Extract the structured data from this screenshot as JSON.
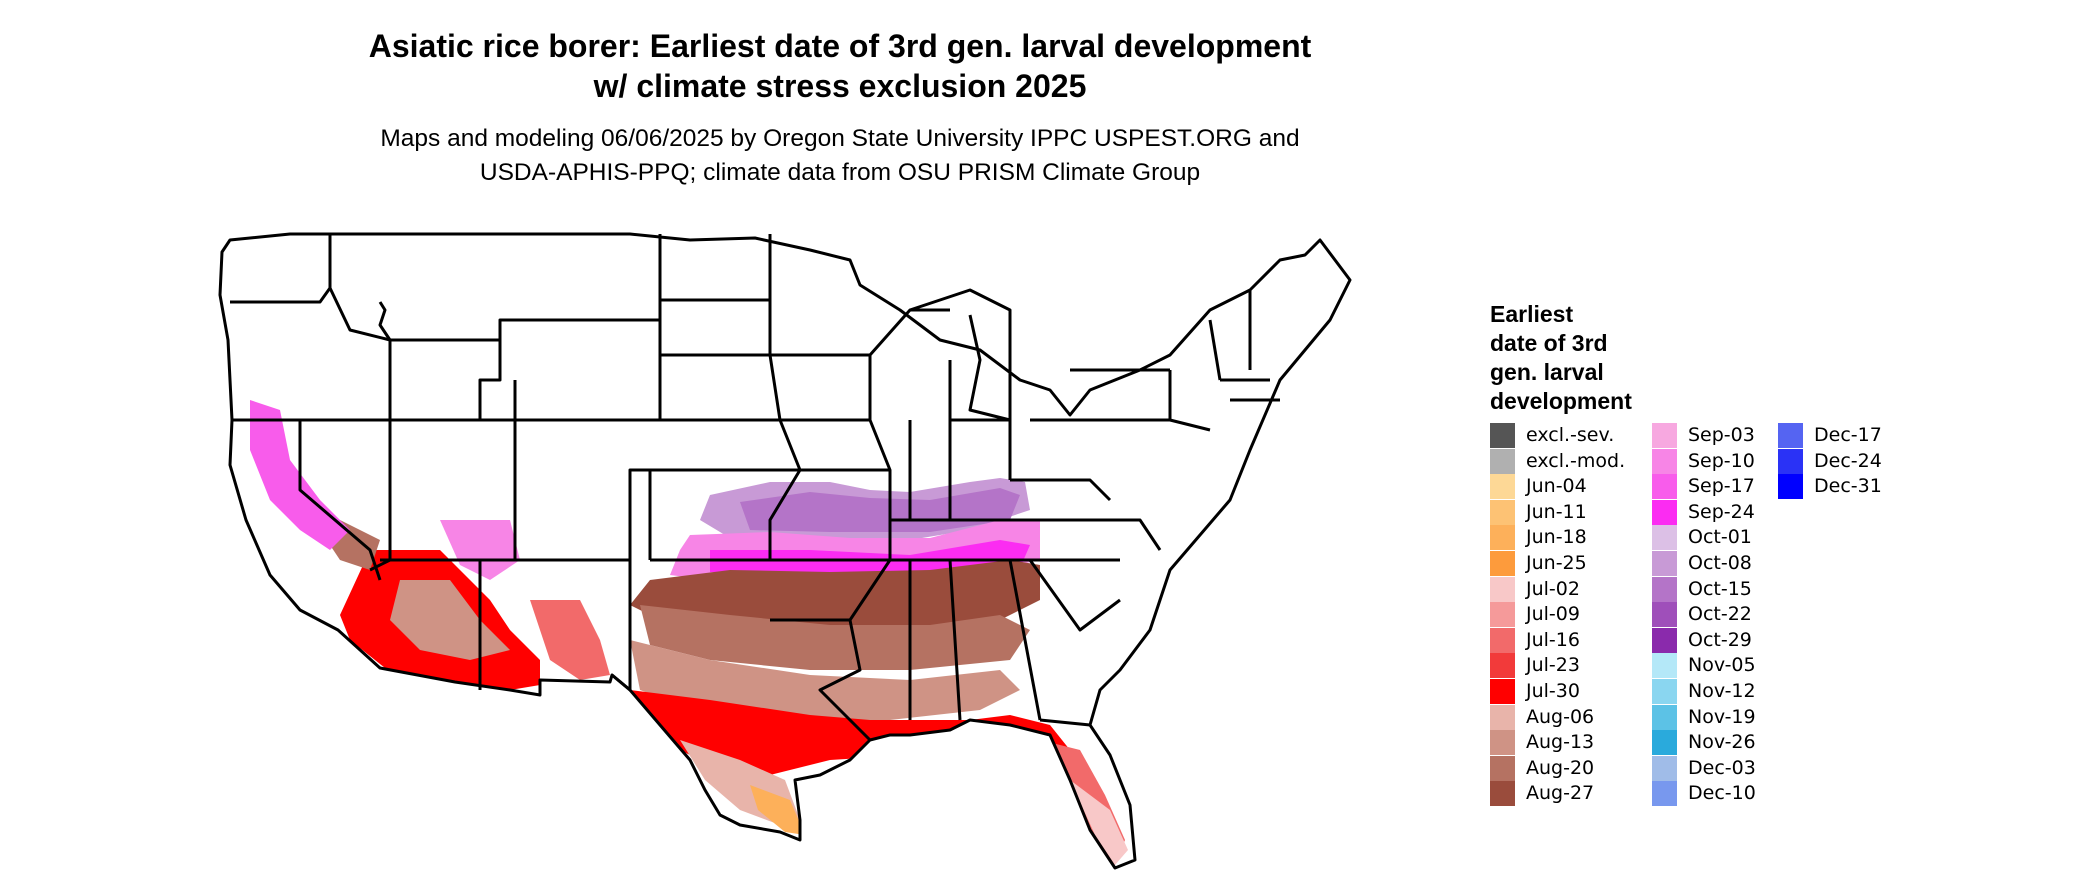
{
  "title_line1": "Asiatic rice borer: Earliest date of 3rd gen. larval development",
  "title_line2": "w/ climate stress exclusion 2025",
  "subtitle_line1": "Maps and modeling 06/06/2025 by Oregon State University IPPC USPEST.ORG and",
  "subtitle_line2": "USDA-APHIS-PPQ; climate data from OSU PRISM Climate Group",
  "legend": {
    "title": "Earliest\ndate of 3rd\ngen. larval\ndevelopment",
    "columns": [
      [
        {
          "label": "excl.-sev.",
          "color": "#555555"
        },
        {
          "label": "excl.-mod.",
          "color": "#b0b0b0"
        },
        {
          "label": "Jun-04",
          "color": "#fdd896"
        },
        {
          "label": "Jun-11",
          "color": "#fdc274"
        },
        {
          "label": "Jun-18",
          "color": "#fdb05a"
        },
        {
          "label": "Jun-25",
          "color": "#fd9b3c"
        },
        {
          "label": "Jul-02",
          "color": "#f8c8c8"
        },
        {
          "label": "Jul-09",
          "color": "#f59a9a"
        },
        {
          "label": "Jul-16",
          "color": "#f26a6a"
        },
        {
          "label": "Jul-23",
          "color": "#f23a3a"
        },
        {
          "label": "Jul-30",
          "color": "#ff0000"
        },
        {
          "label": "Aug-06",
          "color": "#e8b4aa"
        },
        {
          "label": "Aug-13",
          "color": "#cf9385"
        },
        {
          "label": "Aug-20",
          "color": "#b57262"
        },
        {
          "label": "Aug-27",
          "color": "#9a4c3c"
        }
      ],
      [
        {
          "label": "Sep-03",
          "color": "#f7a8e0"
        },
        {
          "label": "Sep-10",
          "color": "#f785e6"
        },
        {
          "label": "Sep-17",
          "color": "#f85ceb"
        },
        {
          "label": "Sep-24",
          "color": "#fb2cf2"
        },
        {
          "label": "Oct-01",
          "color": "#dcc0e6"
        },
        {
          "label": "Oct-08",
          "color": "#c89ad6"
        },
        {
          "label": "Oct-15",
          "color": "#b474c8"
        },
        {
          "label": "Oct-22",
          "color": "#9f4fba"
        },
        {
          "label": "Oct-29",
          "color": "#8a2aac"
        },
        {
          "label": "Nov-05",
          "color": "#b4e8f8"
        },
        {
          "label": "Nov-12",
          "color": "#8ad6f0"
        },
        {
          "label": "Nov-19",
          "color": "#5cc2e6"
        },
        {
          "label": "Nov-26",
          "color": "#2aaadc"
        },
        {
          "label": "Dec-03",
          "color": "#a0bce8"
        },
        {
          "label": "Dec-10",
          "color": "#7898ee"
        }
      ],
      [
        {
          "label": "Dec-17",
          "color": "#5564f2"
        },
        {
          "label": "Dec-24",
          "color": "#2a32f6"
        },
        {
          "label": "Dec-31",
          "color": "#0000ff"
        }
      ]
    ]
  }
}
